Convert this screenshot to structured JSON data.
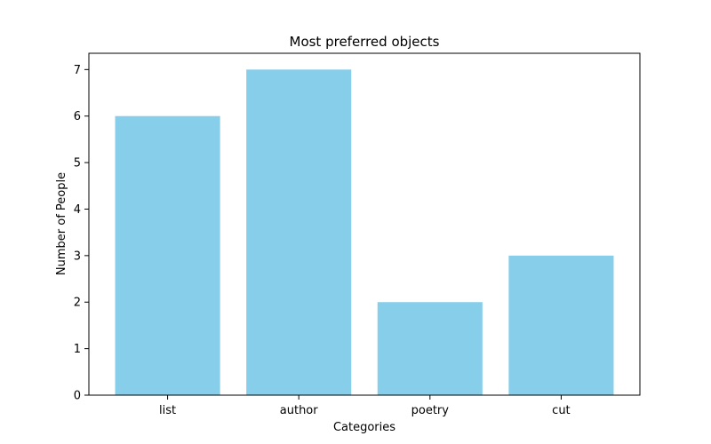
{
  "chart_data": {
    "type": "bar",
    "title": "Most preferred objects",
    "xlabel": "Categories",
    "ylabel": "Number of People",
    "categories": [
      "list",
      "author",
      "poetry",
      "cut"
    ],
    "values": [
      6,
      7,
      2,
      3
    ],
    "ylim": [
      0,
      7.35
    ],
    "yticks": [
      0,
      1,
      2,
      3,
      4,
      5,
      6,
      7
    ],
    "bar_color": "#87CEEB",
    "grid": false,
    "legend": "none"
  }
}
